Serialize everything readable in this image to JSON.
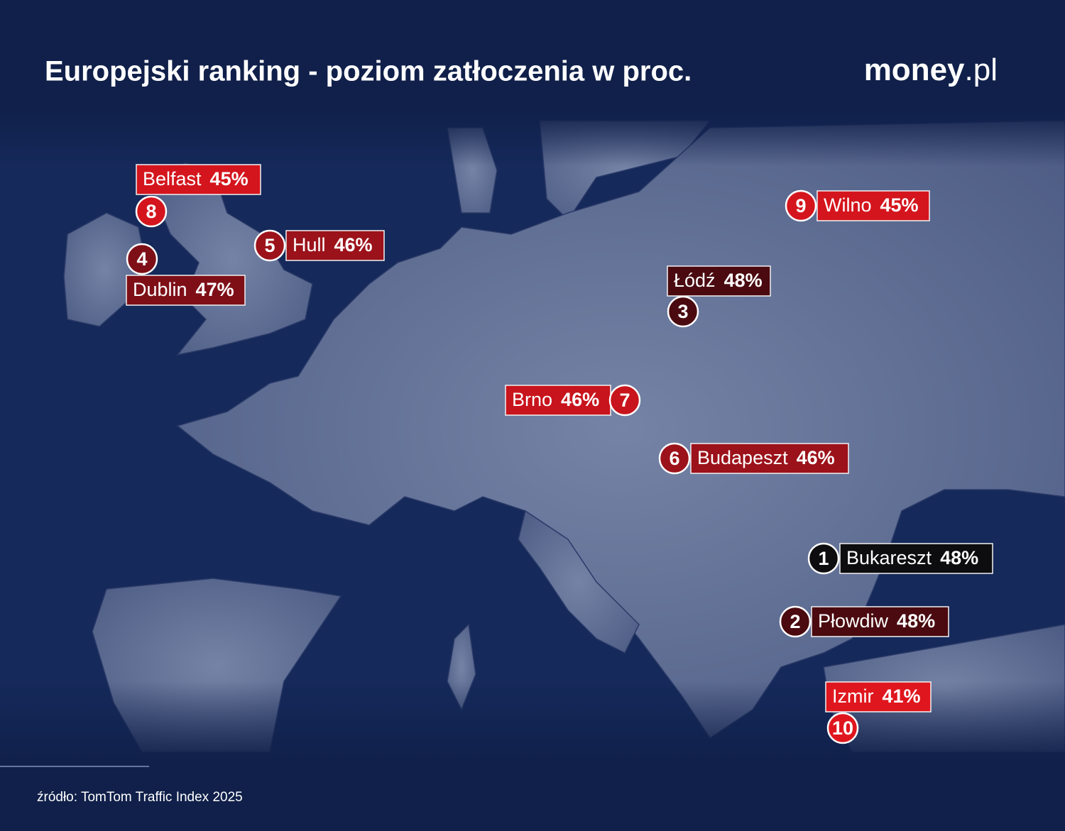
{
  "title": "Europejski ranking - poziom zatłoczenia w proc.",
  "logo": {
    "main": "money",
    "suffix": ".pl"
  },
  "source": "źródło: TomTom Traffic Index 2025",
  "cities": [
    {
      "rank": 1,
      "name": "Bukareszt",
      "value": "48%",
      "color": "#0d0d0f"
    },
    {
      "rank": 2,
      "name": "Płowdiw",
      "value": "48%",
      "color": "#4a0a10"
    },
    {
      "rank": 3,
      "name": "Łódź",
      "value": "48%",
      "color": "#4a0a10"
    },
    {
      "rank": 4,
      "name": "Dublin",
      "value": "47%",
      "color": "#7e0f17"
    },
    {
      "rank": 5,
      "name": "Hull",
      "value": "46%",
      "color": "#9c121a"
    },
    {
      "rank": 6,
      "name": "Budapeszt",
      "value": "46%",
      "color": "#9c121a"
    },
    {
      "rank": 7,
      "name": "Brno",
      "value": "46%",
      "color": "#c8141c"
    },
    {
      "rank": 8,
      "name": "Belfast",
      "value": "45%",
      "color": "#d4151d"
    },
    {
      "rank": 9,
      "name": "Wilno",
      "value": "45%",
      "color": "#d4151d"
    },
    {
      "rank": 10,
      "name": "Izmir",
      "value": "41%",
      "color": "#e0161e"
    }
  ]
}
